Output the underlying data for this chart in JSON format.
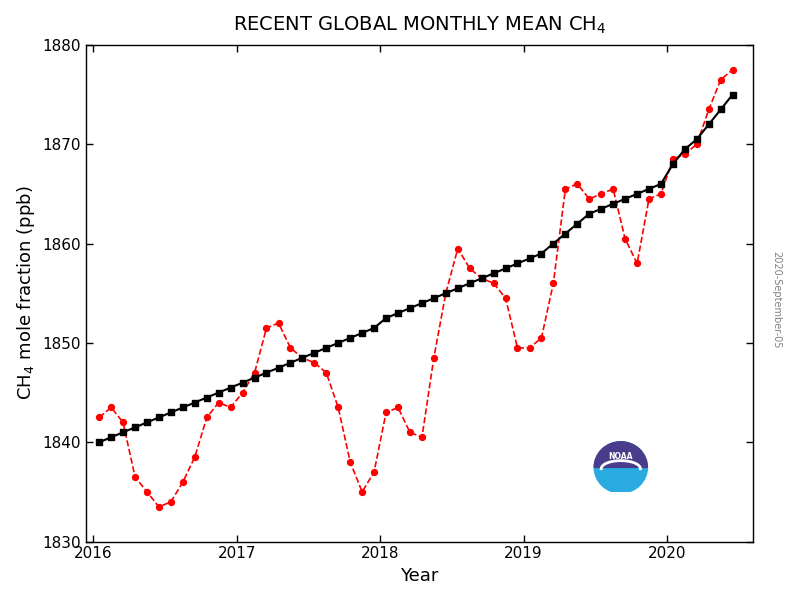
{
  "title": "RECENT GLOBAL MONTHLY MEAN CH$_4$",
  "xlabel": "Year",
  "ylabel": "CH$_4$ mole fraction (ppb)",
  "ylim": [
    1830,
    1880
  ],
  "xlim_start_year": 2016,
  "xlim_end_decimal": 2020.6,
  "date_label": "2020-September-05",
  "monthly_x": [
    2016.042,
    2016.125,
    2016.208,
    2016.292,
    2016.375,
    2016.458,
    2016.542,
    2016.625,
    2016.708,
    2016.792,
    2016.875,
    2016.958,
    2017.042,
    2017.125,
    2017.208,
    2017.292,
    2017.375,
    2017.458,
    2017.542,
    2017.625,
    2017.708,
    2017.792,
    2017.875,
    2017.958,
    2018.042,
    2018.125,
    2018.208,
    2018.292,
    2018.375,
    2018.458,
    2018.542,
    2018.625,
    2018.708,
    2018.792,
    2018.875,
    2018.958,
    2019.042,
    2019.125,
    2019.208,
    2019.292,
    2019.375,
    2019.458,
    2019.542,
    2019.625,
    2019.708,
    2019.792,
    2019.875,
    2019.958,
    2020.042,
    2020.125,
    2020.208,
    2020.292,
    2020.375,
    2020.458
  ],
  "monthly_y": [
    1842.5,
    1843.5,
    1842.0,
    1836.5,
    1835.0,
    1833.5,
    1834.0,
    1836.0,
    1838.5,
    1842.5,
    1844.0,
    1843.5,
    1845.0,
    1847.0,
    1851.5,
    1852.0,
    1849.5,
    1848.5,
    1848.0,
    1847.0,
    1843.5,
    1838.0,
    1835.0,
    1837.0,
    1843.0,
    1843.5,
    1841.0,
    1840.5,
    1848.5,
    1855.0,
    1859.5,
    1857.5,
    1856.5,
    1856.0,
    1854.5,
    1849.5,
    1849.5,
    1850.5,
    1856.0,
    1865.5,
    1866.0,
    1864.5,
    1865.0,
    1865.5,
    1860.5,
    1858.0,
    1864.5,
    1865.0,
    1868.5,
    1869.0,
    1870.0,
    1873.5,
    1876.5,
    1877.5
  ],
  "trend_x": [
    2016.042,
    2016.125,
    2016.208,
    2016.292,
    2016.375,
    2016.458,
    2016.542,
    2016.625,
    2016.708,
    2016.792,
    2016.875,
    2016.958,
    2017.042,
    2017.125,
    2017.208,
    2017.292,
    2017.375,
    2017.458,
    2017.542,
    2017.625,
    2017.708,
    2017.792,
    2017.875,
    2017.958,
    2018.042,
    2018.125,
    2018.208,
    2018.292,
    2018.375,
    2018.458,
    2018.542,
    2018.625,
    2018.708,
    2018.792,
    2018.875,
    2018.958,
    2019.042,
    2019.125,
    2019.208,
    2019.292,
    2019.375,
    2019.458,
    2019.542,
    2019.625,
    2019.708,
    2019.792,
    2019.875,
    2019.958,
    2020.042,
    2020.125,
    2020.208,
    2020.292,
    2020.375,
    2020.458
  ],
  "trend_y": [
    1840.0,
    1840.5,
    1841.0,
    1841.5,
    1842.0,
    1842.5,
    1843.0,
    1843.5,
    1844.0,
    1844.5,
    1845.0,
    1845.5,
    1846.0,
    1846.5,
    1847.0,
    1847.5,
    1848.0,
    1848.5,
    1849.0,
    1849.5,
    1850.0,
    1850.5,
    1851.0,
    1851.5,
    1852.5,
    1853.0,
    1853.5,
    1854.0,
    1854.5,
    1855.0,
    1855.5,
    1856.0,
    1856.5,
    1857.0,
    1857.5,
    1858.0,
    1858.5,
    1859.0,
    1860.0,
    1861.0,
    1862.0,
    1863.0,
    1863.5,
    1864.0,
    1864.5,
    1865.0,
    1865.5,
    1866.0,
    1868.0,
    1869.5,
    1870.5,
    1872.0,
    1873.5,
    1875.0
  ],
  "monthly_color": "#ff0000",
  "trend_color": "#000000",
  "bg_color": "#ffffff",
  "title_fontsize": 14,
  "axis_label_fontsize": 13,
  "tick_fontsize": 11,
  "xticks": [
    2016,
    2017,
    2018,
    2019,
    2020
  ],
  "yticks": [
    1830,
    1840,
    1850,
    1860,
    1870,
    1880
  ]
}
